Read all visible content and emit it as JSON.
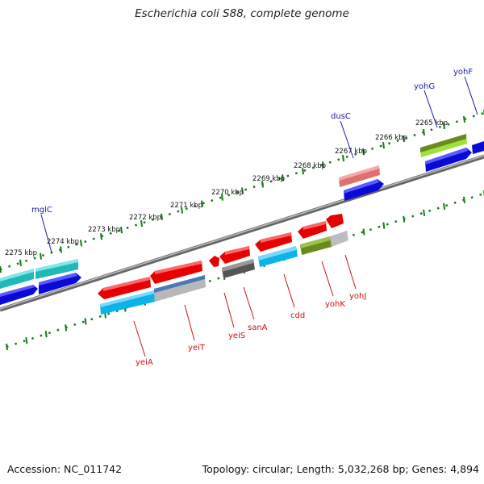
{
  "title": "Escherichia coli S88, complete genome",
  "footer": {
    "accession": "Accession: NC_011742",
    "summary": "Topology: circular; Length: 5,032,268 bp; Genes: 4,894"
  },
  "colors": {
    "tick": "#1a7a1a",
    "plus_label": "#1a1aa8",
    "minus_label": "#cc1111",
    "backbone": "#8a8a8a"
  },
  "kbp_labels": [
    "2275 kbp",
    "2274 kbp",
    "2273 kbp",
    "2272 kbp",
    "2271 kbp",
    "2270 kbp",
    "2269 kbp",
    "2268 kbp",
    "2267 kbp",
    "2266 kbp",
    "2265 kbp"
  ],
  "genes_top": [
    {
      "name": "mglC"
    },
    {
      "name": "dusC"
    },
    {
      "name": "yohG"
    },
    {
      "name": "yohF"
    }
  ],
  "genes_bottom": [
    {
      "name": "yeiA"
    },
    {
      "name": "yeiT"
    },
    {
      "name": "yeiS"
    },
    {
      "name": "sanA"
    },
    {
      "name": "cdd"
    },
    {
      "name": "yohK"
    },
    {
      "name": "yohJ"
    }
  ]
}
